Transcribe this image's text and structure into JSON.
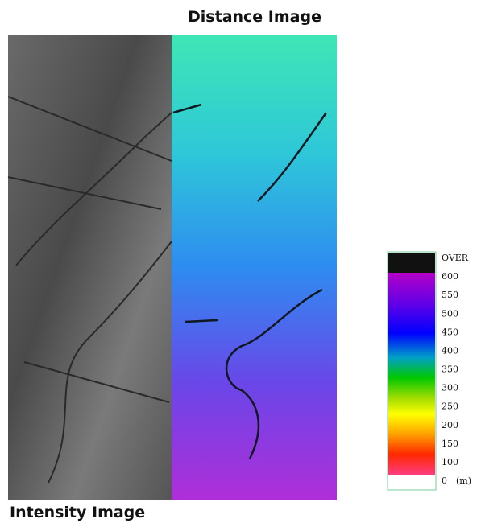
{
  "labels": {
    "top": "Distance Image",
    "bottom": "Intensity Image"
  },
  "colorbar": {
    "ticks": [
      "OVER",
      "600",
      "550",
      "500",
      "450",
      "400",
      "350",
      "300",
      "250",
      "200",
      "150",
      "100",
      "0"
    ],
    "unit": "(m)"
  }
}
